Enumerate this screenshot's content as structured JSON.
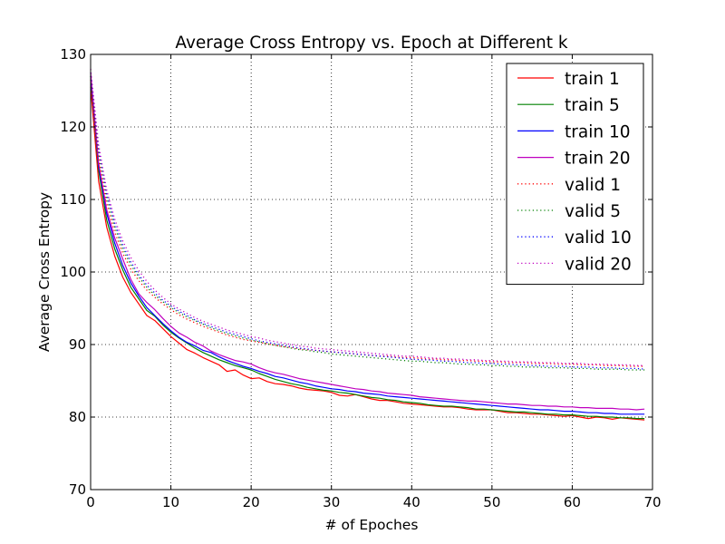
{
  "chart_data": {
    "type": "line",
    "title": "Average Cross Entropy vs. Epoch  at Different k",
    "xlabel": "# of Epoches",
    "ylabel": "Average Cross Entropy",
    "xlim": [
      0,
      70
    ],
    "ylim": [
      70,
      130
    ],
    "xticks": [
      0,
      10,
      20,
      30,
      40,
      50,
      60,
      70
    ],
    "yticks": [
      70,
      80,
      90,
      100,
      110,
      120,
      130
    ],
    "grid": true,
    "legend_position": "top-right",
    "colors": {
      "train 1": "#ff0000",
      "train 5": "#008000",
      "train 10": "#0000ff",
      "train 20": "#bf00bf",
      "valid 1": "#ff0000",
      "valid 5": "#008000",
      "valid 10": "#0000ff",
      "valid 20": "#bf00bf"
    },
    "x": [
      0,
      1,
      2,
      3,
      4,
      5,
      6,
      7,
      8,
      9,
      10,
      11,
      12,
      13,
      14,
      15,
      16,
      17,
      18,
      19,
      20,
      21,
      22,
      23,
      24,
      25,
      26,
      27,
      28,
      29,
      30,
      31,
      32,
      33,
      34,
      35,
      36,
      37,
      38,
      39,
      40,
      41,
      42,
      43,
      44,
      45,
      46,
      47,
      48,
      49,
      50,
      51,
      52,
      53,
      54,
      55,
      56,
      57,
      58,
      59,
      60,
      61,
      62,
      63,
      64,
      65,
      66,
      67,
      68,
      69
    ],
    "series": [
      {
        "name": "train 1",
        "style": "solid",
        "values": [
          125.5,
          112.5,
          106.2,
          102.2,
          99.3,
          97.2,
          95.6,
          94.0,
          93.3,
          92.2,
          91.1,
          90.2,
          89.3,
          88.8,
          88.2,
          87.7,
          87.2,
          86.3,
          86.5,
          85.8,
          85.3,
          85.4,
          84.9,
          84.6,
          84.5,
          84.3,
          84.0,
          83.8,
          83.7,
          83.6,
          83.4,
          83.0,
          82.9,
          83.1,
          82.8,
          82.5,
          82.3,
          82.3,
          82.1,
          81.9,
          81.8,
          81.7,
          81.6,
          81.5,
          81.4,
          81.4,
          81.3,
          81.1,
          81.0,
          81.0,
          81.0,
          80.8,
          80.6,
          80.6,
          80.5,
          80.4,
          80.4,
          80.3,
          80.2,
          80.1,
          80.2,
          80.0,
          79.8,
          80.0,
          79.9,
          79.7,
          79.9,
          79.8,
          79.7,
          79.6
        ]
      },
      {
        "name": "train 5",
        "style": "solid",
        "values": [
          127.0,
          114.0,
          107.2,
          103.2,
          100.3,
          97.9,
          96.3,
          94.7,
          93.9,
          92.7,
          91.7,
          90.9,
          90.2,
          89.5,
          88.9,
          88.4,
          87.9,
          87.5,
          87.1,
          86.8,
          86.5,
          86.0,
          85.6,
          85.2,
          84.9,
          84.6,
          84.4,
          84.1,
          83.9,
          83.7,
          83.6,
          83.4,
          83.3,
          83.1,
          82.9,
          82.7,
          82.6,
          82.4,
          82.3,
          82.1,
          82.0,
          81.9,
          81.7,
          81.6,
          81.5,
          81.5,
          81.4,
          81.3,
          81.1,
          81.1,
          81.0,
          80.9,
          80.8,
          80.7,
          80.7,
          80.6,
          80.5,
          80.4,
          80.4,
          80.3,
          80.3,
          80.2,
          80.1,
          80.1,
          80.0,
          80.0,
          79.9,
          79.9,
          79.8,
          79.8
        ]
      },
      {
        "name": "train 10",
        "style": "solid",
        "values": [
          127.0,
          114.6,
          108.1,
          104.0,
          100.9,
          98.5,
          96.7,
          95.1,
          94.0,
          92.9,
          91.9,
          91.0,
          90.3,
          89.8,
          89.2,
          88.9,
          88.3,
          87.8,
          87.4,
          87.0,
          86.7,
          86.3,
          86.0,
          85.6,
          85.4,
          85.1,
          84.8,
          84.6,
          84.3,
          84.1,
          83.9,
          83.8,
          83.6,
          83.5,
          83.3,
          83.2,
          83.1,
          82.9,
          82.8,
          82.7,
          82.6,
          82.5,
          82.4,
          82.3,
          82.2,
          82.1,
          82.0,
          81.9,
          81.8,
          81.7,
          81.6,
          81.5,
          81.4,
          81.3,
          81.2,
          81.1,
          81.0,
          81.0,
          80.9,
          80.8,
          80.8,
          80.7,
          80.6,
          80.6,
          80.5,
          80.5,
          80.4,
          80.4,
          80.4,
          80.4
        ]
      },
      {
        "name": "train 20",
        "style": "solid",
        "values": [
          127.5,
          115.0,
          108.6,
          104.7,
          101.8,
          99.0,
          97.0,
          95.8,
          94.8,
          93.6,
          92.5,
          91.6,
          91.0,
          90.3,
          89.8,
          89.1,
          88.6,
          88.2,
          87.8,
          87.6,
          87.3,
          86.8,
          86.4,
          86.1,
          85.9,
          85.6,
          85.3,
          85.1,
          84.9,
          84.7,
          84.5,
          84.3,
          84.1,
          83.9,
          83.8,
          83.6,
          83.5,
          83.3,
          83.2,
          83.1,
          83.0,
          82.8,
          82.7,
          82.6,
          82.5,
          82.4,
          82.3,
          82.2,
          82.2,
          82.1,
          82.0,
          81.9,
          81.8,
          81.8,
          81.7,
          81.6,
          81.6,
          81.5,
          81.5,
          81.4,
          81.4,
          81.3,
          81.3,
          81.2,
          81.2,
          81.2,
          81.1,
          81.1,
          81.0,
          81.1
        ]
      },
      {
        "name": "valid 1",
        "style": "dotted",
        "values": [
          126.5,
          115.5,
          109.5,
          105.5,
          102.6,
          100.4,
          98.8,
          97.5,
          96.5,
          95.6,
          94.8,
          94.1,
          93.5,
          93.0,
          92.5,
          92.1,
          91.7,
          91.3,
          91.0,
          90.7,
          90.5,
          90.3,
          90.1,
          89.9,
          89.7,
          89.6,
          89.4,
          89.3,
          89.2,
          89.1,
          89.0,
          88.9,
          88.8,
          88.7,
          88.6,
          88.5,
          88.4,
          88.4,
          88.3,
          88.2,
          88.2,
          88.1,
          88.0,
          88.0,
          87.9,
          87.9,
          87.8,
          87.8,
          87.7,
          87.7,
          87.6,
          87.6,
          87.5,
          87.5,
          87.5,
          87.4,
          87.4,
          87.4,
          87.3,
          87.3,
          87.3,
          87.2,
          87.2,
          87.2,
          87.1,
          87.1,
          87.1,
          87.0,
          87.0,
          87.0
        ]
      },
      {
        "name": "valid 5",
        "style": "dotted",
        "values": [
          127.0,
          116.5,
          110.3,
          106.2,
          103.2,
          101.0,
          99.3,
          97.9,
          96.8,
          95.9,
          95.1,
          94.4,
          93.8,
          93.3,
          92.8,
          92.3,
          91.9,
          91.5,
          91.2,
          90.9,
          90.6,
          90.4,
          90.1,
          89.9,
          89.7,
          89.5,
          89.3,
          89.2,
          89.0,
          88.9,
          88.7,
          88.6,
          88.5,
          88.4,
          88.3,
          88.2,
          88.1,
          88.0,
          87.9,
          87.8,
          87.7,
          87.7,
          87.6,
          87.5,
          87.5,
          87.4,
          87.3,
          87.3,
          87.2,
          87.2,
          87.1,
          87.1,
          87.0,
          87.0,
          86.9,
          86.9,
          86.9,
          86.8,
          86.8,
          86.8,
          86.7,
          86.7,
          86.7,
          86.6,
          86.6,
          86.6,
          86.6,
          86.5,
          86.5,
          86.5
        ]
      },
      {
        "name": "valid 10",
        "style": "dotted",
        "values": [
          127.5,
          117.0,
          110.8,
          106.7,
          103.7,
          101.4,
          99.6,
          98.2,
          97.1,
          96.1,
          95.3,
          94.6,
          94.0,
          93.4,
          92.9,
          92.5,
          92.1,
          91.7,
          91.4,
          91.1,
          90.8,
          90.5,
          90.3,
          90.1,
          89.9,
          89.7,
          89.5,
          89.4,
          89.2,
          89.1,
          89.0,
          88.9,
          88.8,
          88.7,
          88.6,
          88.5,
          88.4,
          88.3,
          88.2,
          88.1,
          88.0,
          87.9,
          87.9,
          87.8,
          87.7,
          87.7,
          87.6,
          87.5,
          87.5,
          87.4,
          87.4,
          87.3,
          87.3,
          87.2,
          87.2,
          87.1,
          87.1,
          87.0,
          87.0,
          87.0,
          86.9,
          86.9,
          86.9,
          86.8,
          86.8,
          86.8,
          86.7,
          86.7,
          86.7,
          86.6
        ]
      },
      {
        "name": "valid 20",
        "style": "dotted",
        "values": [
          128.0,
          117.5,
          111.3,
          107.3,
          104.3,
          102.0,
          100.2,
          98.7,
          97.5,
          96.5,
          95.6,
          94.9,
          94.3,
          93.7,
          93.2,
          92.8,
          92.4,
          92.0,
          91.7,
          91.4,
          91.1,
          90.9,
          90.6,
          90.4,
          90.2,
          90.0,
          89.8,
          89.7,
          89.5,
          89.4,
          89.3,
          89.2,
          89.1,
          89.0,
          88.9,
          88.8,
          88.7,
          88.6,
          88.5,
          88.4,
          88.4,
          88.3,
          88.2,
          88.1,
          88.1,
          88.0,
          88.0,
          87.9,
          87.9,
          87.8,
          87.8,
          87.7,
          87.7,
          87.6,
          87.6,
          87.6,
          87.5,
          87.5,
          87.5,
          87.4,
          87.4,
          87.4,
          87.3,
          87.3,
          87.3,
          87.2,
          87.2,
          87.2,
          87.1,
          87.1
        ]
      }
    ]
  }
}
